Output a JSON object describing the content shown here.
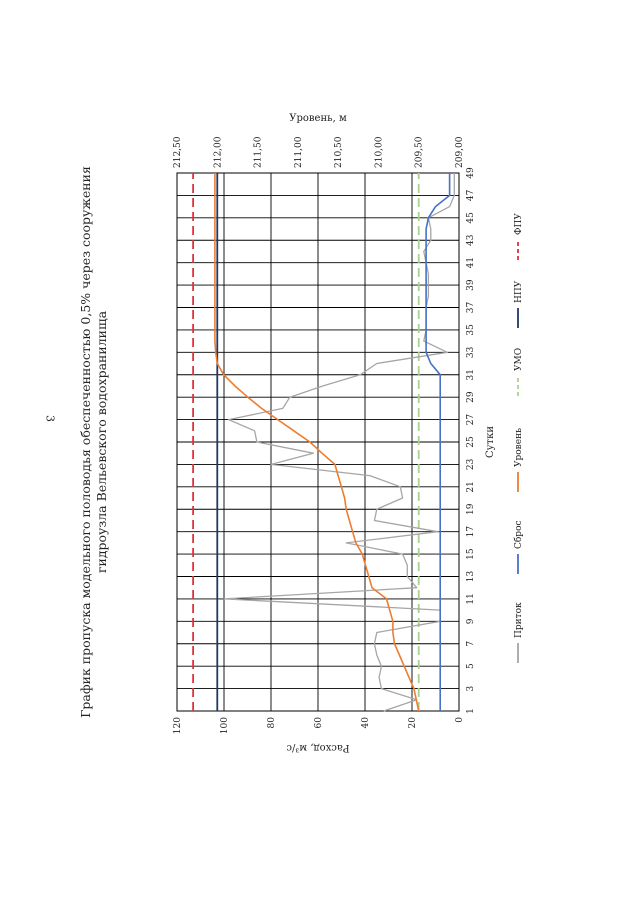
{
  "page_number": "3",
  "chart_data": {
    "type": "line",
    "title_line1": "График пропуска модельного половодья обеспеченностью 0,5% через сооружения",
    "title_line2": "гидроузла Вельевского водохранилища",
    "xlabel": "Сутки",
    "ylabel": "Расход, м³/с",
    "y2label": "Уровень, м",
    "xlim": [
      1,
      49
    ],
    "ylim": [
      0,
      120
    ],
    "y2lim": [
      209.0,
      212.5
    ],
    "x_ticks": [
      "1",
      "3",
      "5",
      "7",
      "9",
      "11",
      "13",
      "15",
      "17",
      "19",
      "21",
      "23",
      "25",
      "27",
      "29",
      "31",
      "33",
      "35",
      "37",
      "39",
      "41",
      "43",
      "45",
      "47",
      "49"
    ],
    "y_ticks": [
      "0",
      "20",
      "40",
      "60",
      "80",
      "100",
      "120"
    ],
    "y2_ticks": [
      "209,00",
      "209,50",
      "210,00",
      "210,50",
      "211,00",
      "211,50",
      "212,00",
      "212,50"
    ],
    "colors": {
      "inflow": "#a6a6a6",
      "discharge": "#4472c4",
      "level": "#ed7d31",
      "umo": "#a9d18e",
      "npu": "#203864",
      "fpu": "#e0303a"
    },
    "series": [
      {
        "name": "Приток",
        "axis": "left",
        "x": [
          1,
          2,
          3,
          4,
          5,
          6,
          7,
          8,
          9,
          10,
          11,
          12,
          13,
          14,
          15,
          16,
          17,
          18,
          19,
          20,
          21,
          22,
          23,
          24,
          25,
          26,
          27,
          28,
          29,
          30,
          31,
          32,
          33,
          34,
          35,
          36,
          37,
          38,
          39,
          40,
          41,
          42,
          43,
          44,
          45,
          46,
          47,
          48,
          49
        ],
        "values": [
          32,
          18,
          33,
          34,
          33,
          35,
          36,
          35,
          8,
          8,
          100,
          18,
          22,
          22,
          24,
          48,
          9,
          36,
          35,
          24,
          25,
          38,
          80,
          62,
          86,
          87,
          98,
          75,
          72,
          58,
          42,
          35,
          5,
          15,
          14,
          14,
          14,
          13,
          13,
          13,
          14,
          15,
          12,
          12,
          13,
          4,
          2,
          2,
          2
        ]
      },
      {
        "name": "Сброс",
        "axis": "left",
        "x": [
          1,
          2,
          3,
          4,
          5,
          6,
          7,
          8,
          9,
          10,
          11,
          12,
          13,
          14,
          15,
          16,
          17,
          18,
          19,
          20,
          21,
          22,
          23,
          24,
          25,
          26,
          27,
          28,
          29,
          30,
          31,
          32,
          33,
          34,
          35,
          36,
          37,
          38,
          39,
          40,
          41,
          42,
          43,
          44,
          45,
          46,
          47,
          48,
          49
        ],
        "values": [
          8,
          8,
          8,
          8,
          8,
          8,
          8,
          8,
          8,
          8,
          8,
          8,
          8,
          8,
          8,
          8,
          8,
          8,
          8,
          8,
          8,
          8,
          8,
          8,
          8,
          8,
          8,
          8,
          8,
          8,
          8,
          12,
          14,
          14,
          14,
          14,
          14,
          14,
          14,
          14,
          14,
          14,
          14,
          14,
          13,
          10,
          4,
          4,
          4
        ]
      },
      {
        "name": "Уровень",
        "axis": "right",
        "x": [
          1,
          2,
          3,
          4,
          5,
          6,
          7,
          8,
          9,
          10,
          11,
          12,
          13,
          14,
          15,
          16,
          17,
          18,
          19,
          20,
          21,
          22,
          23,
          24,
          25,
          26,
          27,
          28,
          29,
          30,
          31,
          32,
          33,
          34,
          35,
          36,
          37,
          38,
          39,
          40,
          41,
          42,
          43,
          44,
          45,
          46,
          47,
          48,
          49
        ],
        "values": [
          209.5,
          209.53,
          209.56,
          209.62,
          209.68,
          209.74,
          209.8,
          209.82,
          209.82,
          209.86,
          209.9,
          210.08,
          210.12,
          210.16,
          210.2,
          210.28,
          210.32,
          210.36,
          210.4,
          210.42,
          210.46,
          210.5,
          210.54,
          210.7,
          210.85,
          211.05,
          211.25,
          211.45,
          211.62,
          211.78,
          211.92,
          212.0,
          212.02,
          212.03,
          212.03,
          212.03,
          212.03,
          212.03,
          212.03,
          212.03,
          212.03,
          212.03,
          212.03,
          212.03,
          212.03,
          212.03,
          212.03,
          212.03,
          212.03
        ]
      }
    ],
    "reference_lines": [
      {
        "name": "УМО",
        "axis": "right",
        "value": 209.5
      },
      {
        "name": "НПУ",
        "axis": "right",
        "value": 212.0
      },
      {
        "name": "ФПУ",
        "axis": "right",
        "value": 212.3
      }
    ],
    "legend": [
      "Приток",
      "Сброс",
      "Уровень",
      "УМО",
      "НПУ",
      "ФПУ"
    ]
  }
}
